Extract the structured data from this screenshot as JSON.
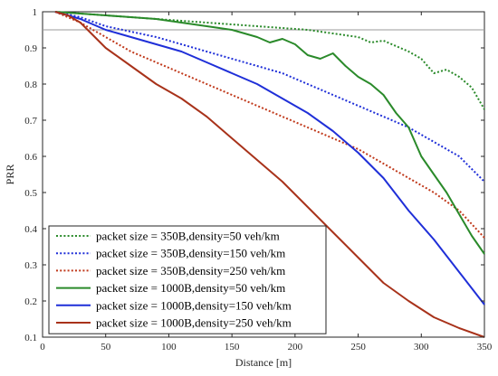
{
  "chart_data": {
    "type": "line",
    "xlabel": "Distance [m]",
    "ylabel": "PRR",
    "xlim": [
      0,
      350
    ],
    "ylim": [
      0.1,
      1
    ],
    "xticks": [
      0,
      50,
      100,
      150,
      200,
      250,
      300,
      350
    ],
    "yticks": [
      0.1,
      0.2,
      0.3,
      0.4,
      0.5,
      0.6,
      0.7,
      0.8,
      0.9,
      1
    ],
    "xtick_labels": [
      "0",
      "50",
      "100",
      "150",
      "200",
      "250",
      "300",
      "350"
    ],
    "ytick_labels": [
      "0.1",
      "0.2",
      "0.3",
      "0.4",
      "0.5",
      "0.6",
      "0.7",
      "0.8",
      "0.9",
      "1"
    ],
    "grid": false,
    "reference_line": 0.95,
    "legend_position": "bottom-left",
    "series": [
      {
        "name": "packet size = 350B,density=50 veh/km",
        "color": "#2a8a2a",
        "style": "dotted",
        "x": [
          10,
          30,
          50,
          70,
          90,
          110,
          130,
          150,
          170,
          190,
          210,
          230,
          250,
          260,
          270,
          280,
          290,
          300,
          310,
          320,
          330,
          340,
          350
        ],
        "y": [
          1.0,
          0.995,
          0.99,
          0.985,
          0.98,
          0.975,
          0.97,
          0.965,
          0.96,
          0.955,
          0.95,
          0.94,
          0.93,
          0.915,
          0.92,
          0.905,
          0.89,
          0.87,
          0.83,
          0.84,
          0.82,
          0.79,
          0.73
        ]
      },
      {
        "name": "packet size = 350B,density=150 veh/km",
        "color": "#1f2fd8",
        "style": "dotted",
        "x": [
          10,
          30,
          50,
          70,
          90,
          110,
          130,
          150,
          170,
          190,
          210,
          230,
          250,
          270,
          290,
          310,
          330,
          350
        ],
        "y": [
          1.0,
          0.985,
          0.96,
          0.945,
          0.93,
          0.91,
          0.89,
          0.87,
          0.85,
          0.83,
          0.8,
          0.77,
          0.74,
          0.71,
          0.68,
          0.64,
          0.6,
          0.53
        ]
      },
      {
        "name": "packet size = 350B,density=250 veh/km",
        "color": "#c0391b",
        "style": "dotted",
        "x": [
          10,
          30,
          50,
          70,
          90,
          110,
          130,
          150,
          170,
          190,
          210,
          230,
          250,
          270,
          290,
          310,
          330,
          350
        ],
        "y": [
          1.0,
          0.97,
          0.93,
          0.89,
          0.86,
          0.83,
          0.8,
          0.77,
          0.74,
          0.71,
          0.68,
          0.65,
          0.62,
          0.58,
          0.54,
          0.5,
          0.45,
          0.375
        ]
      },
      {
        "name": "packet size = 1000B,density=50 veh/km",
        "color": "#2a8a2a",
        "style": "solid",
        "x": [
          10,
          30,
          50,
          70,
          90,
          110,
          130,
          140,
          150,
          160,
          170,
          180,
          190,
          200,
          210,
          220,
          230,
          240,
          250,
          260,
          270,
          280,
          290,
          300,
          310,
          320,
          330,
          340,
          350
        ],
        "y": [
          1.0,
          0.995,
          0.99,
          0.985,
          0.98,
          0.97,
          0.96,
          0.955,
          0.95,
          0.94,
          0.93,
          0.915,
          0.925,
          0.91,
          0.88,
          0.87,
          0.885,
          0.85,
          0.82,
          0.8,
          0.77,
          0.72,
          0.68,
          0.6,
          0.55,
          0.5,
          0.44,
          0.38,
          0.33
        ]
      },
      {
        "name": "packet size = 1000B,density=150 veh/km",
        "color": "#1f2fd8",
        "style": "solid",
        "x": [
          10,
          30,
          50,
          70,
          90,
          110,
          130,
          150,
          170,
          190,
          210,
          230,
          250,
          270,
          290,
          310,
          330,
          350
        ],
        "y": [
          1.0,
          0.98,
          0.95,
          0.93,
          0.91,
          0.89,
          0.86,
          0.83,
          0.8,
          0.76,
          0.72,
          0.67,
          0.61,
          0.54,
          0.45,
          0.37,
          0.28,
          0.19
        ]
      },
      {
        "name": "packet size = 1000B,density=250 veh/km",
        "color": "#a8321a",
        "style": "solid",
        "x": [
          10,
          20,
          30,
          50,
          70,
          90,
          110,
          130,
          150,
          170,
          190,
          210,
          230,
          250,
          270,
          290,
          310,
          330,
          350
        ],
        "y": [
          1.0,
          0.99,
          0.97,
          0.9,
          0.85,
          0.8,
          0.76,
          0.71,
          0.65,
          0.59,
          0.53,
          0.46,
          0.39,
          0.32,
          0.25,
          0.2,
          0.155,
          0.125,
          0.1
        ]
      }
    ]
  }
}
